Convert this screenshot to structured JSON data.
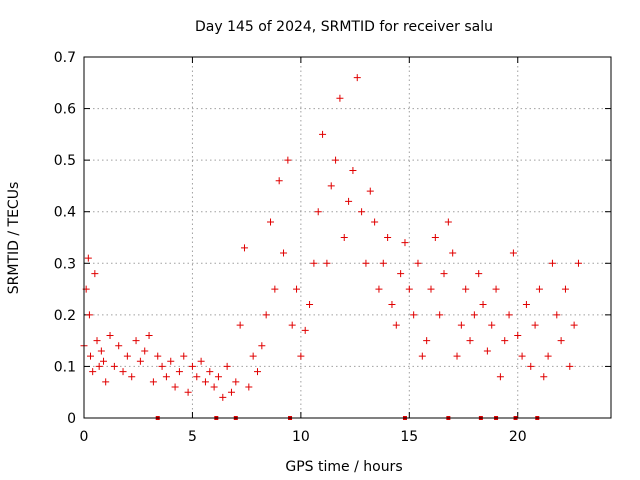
{
  "chart_data": {
    "type": "scatter",
    "title": "Day 145 of 2024, SRMTID for receiver salu",
    "xlabel": "GPS time / hours",
    "ylabel": "SRMTID / TECUs",
    "xlim": [
      0,
      24.3
    ],
    "ylim": [
      0,
      0.7
    ],
    "xticks": [
      0,
      5,
      10,
      15,
      20
    ],
    "xtick_labels": [
      "0",
      "5",
      "10",
      "15",
      "20"
    ],
    "yticks": [
      0,
      0.1,
      0.2,
      0.3,
      0.4,
      0.5,
      0.6,
      0.7
    ],
    "ytick_labels": [
      "0",
      "0.1",
      "0.2",
      "0.3",
      "0.4",
      "0.5",
      "0.6",
      "0.7"
    ],
    "grid": true,
    "marker": "+",
    "color": "#e00000",
    "series": [
      {
        "name": "SRMTID",
        "x": [
          0.0,
          0.1,
          0.2,
          0.25,
          0.3,
          0.4,
          0.5,
          0.6,
          0.7,
          0.8,
          0.9,
          1.0,
          1.2,
          1.4,
          1.6,
          1.8,
          2.0,
          2.2,
          2.4,
          2.6,
          2.8,
          3.0,
          3.2,
          3.4,
          3.6,
          3.8,
          4.0,
          4.2,
          4.4,
          4.6,
          4.8,
          5.0,
          5.2,
          5.4,
          5.6,
          5.8,
          6.0,
          6.2,
          6.4,
          6.6,
          6.8,
          7.0,
          7.2,
          7.4,
          7.6,
          7.8,
          8.0,
          8.2,
          8.4,
          8.6,
          8.8,
          9.0,
          9.2,
          9.4,
          9.6,
          9.8,
          10.0,
          10.2,
          10.4,
          10.6,
          10.8,
          11.0,
          11.2,
          11.4,
          11.6,
          11.8,
          12.0,
          12.2,
          12.4,
          12.6,
          12.8,
          13.0,
          13.2,
          13.4,
          13.6,
          13.8,
          14.0,
          14.2,
          14.4,
          14.6,
          14.8,
          15.0,
          15.2,
          15.4,
          15.6,
          15.8,
          16.0,
          16.2,
          16.4,
          16.6,
          16.8,
          17.0,
          17.2,
          17.4,
          17.6,
          17.8,
          18.0,
          18.2,
          18.4,
          18.6,
          18.8,
          19.0,
          19.2,
          19.4,
          19.6,
          19.8,
          20.0,
          20.2,
          20.4,
          20.6,
          20.8,
          21.0,
          21.2,
          21.4,
          21.6,
          21.8,
          22.0,
          22.2,
          22.4,
          22.6,
          22.8
        ],
        "y": [
          0.14,
          0.25,
          0.31,
          0.2,
          0.12,
          0.09,
          0.28,
          0.15,
          0.1,
          0.13,
          0.11,
          0.07,
          0.16,
          0.1,
          0.14,
          0.09,
          0.12,
          0.08,
          0.15,
          0.11,
          0.13,
          0.16,
          0.07,
          0.12,
          0.1,
          0.08,
          0.11,
          0.06,
          0.09,
          0.12,
          0.05,
          0.1,
          0.08,
          0.11,
          0.07,
          0.09,
          0.06,
          0.08,
          0.04,
          0.1,
          0.05,
          0.07,
          0.18,
          0.33,
          0.06,
          0.12,
          0.09,
          0.14,
          0.2,
          0.38,
          0.25,
          0.46,
          0.32,
          0.5,
          0.18,
          0.25,
          0.12,
          0.17,
          0.22,
          0.3,
          0.4,
          0.55,
          0.3,
          0.45,
          0.5,
          0.62,
          0.35,
          0.42,
          0.48,
          0.66,
          0.4,
          0.3,
          0.44,
          0.38,
          0.25,
          0.3,
          0.35,
          0.22,
          0.18,
          0.28,
          0.34,
          0.25,
          0.2,
          0.3,
          0.12,
          0.15,
          0.25,
          0.35,
          0.2,
          0.28,
          0.38,
          0.32,
          0.12,
          0.18,
          0.25,
          0.15,
          0.2,
          0.28,
          0.22,
          0.13,
          0.18,
          0.25,
          0.08,
          0.15,
          0.2,
          0.32,
          0.16,
          0.12,
          0.22,
          0.1,
          0.18,
          0.25,
          0.08,
          0.12,
          0.3,
          0.2,
          0.15,
          0.25,
          0.1,
          0.18,
          0.3
        ]
      }
    ],
    "data_gaps_x": [
      3.4,
      6.1,
      7.0,
      9.5,
      14.8,
      16.8,
      18.3,
      19.0,
      19.9,
      20.9
    ]
  }
}
